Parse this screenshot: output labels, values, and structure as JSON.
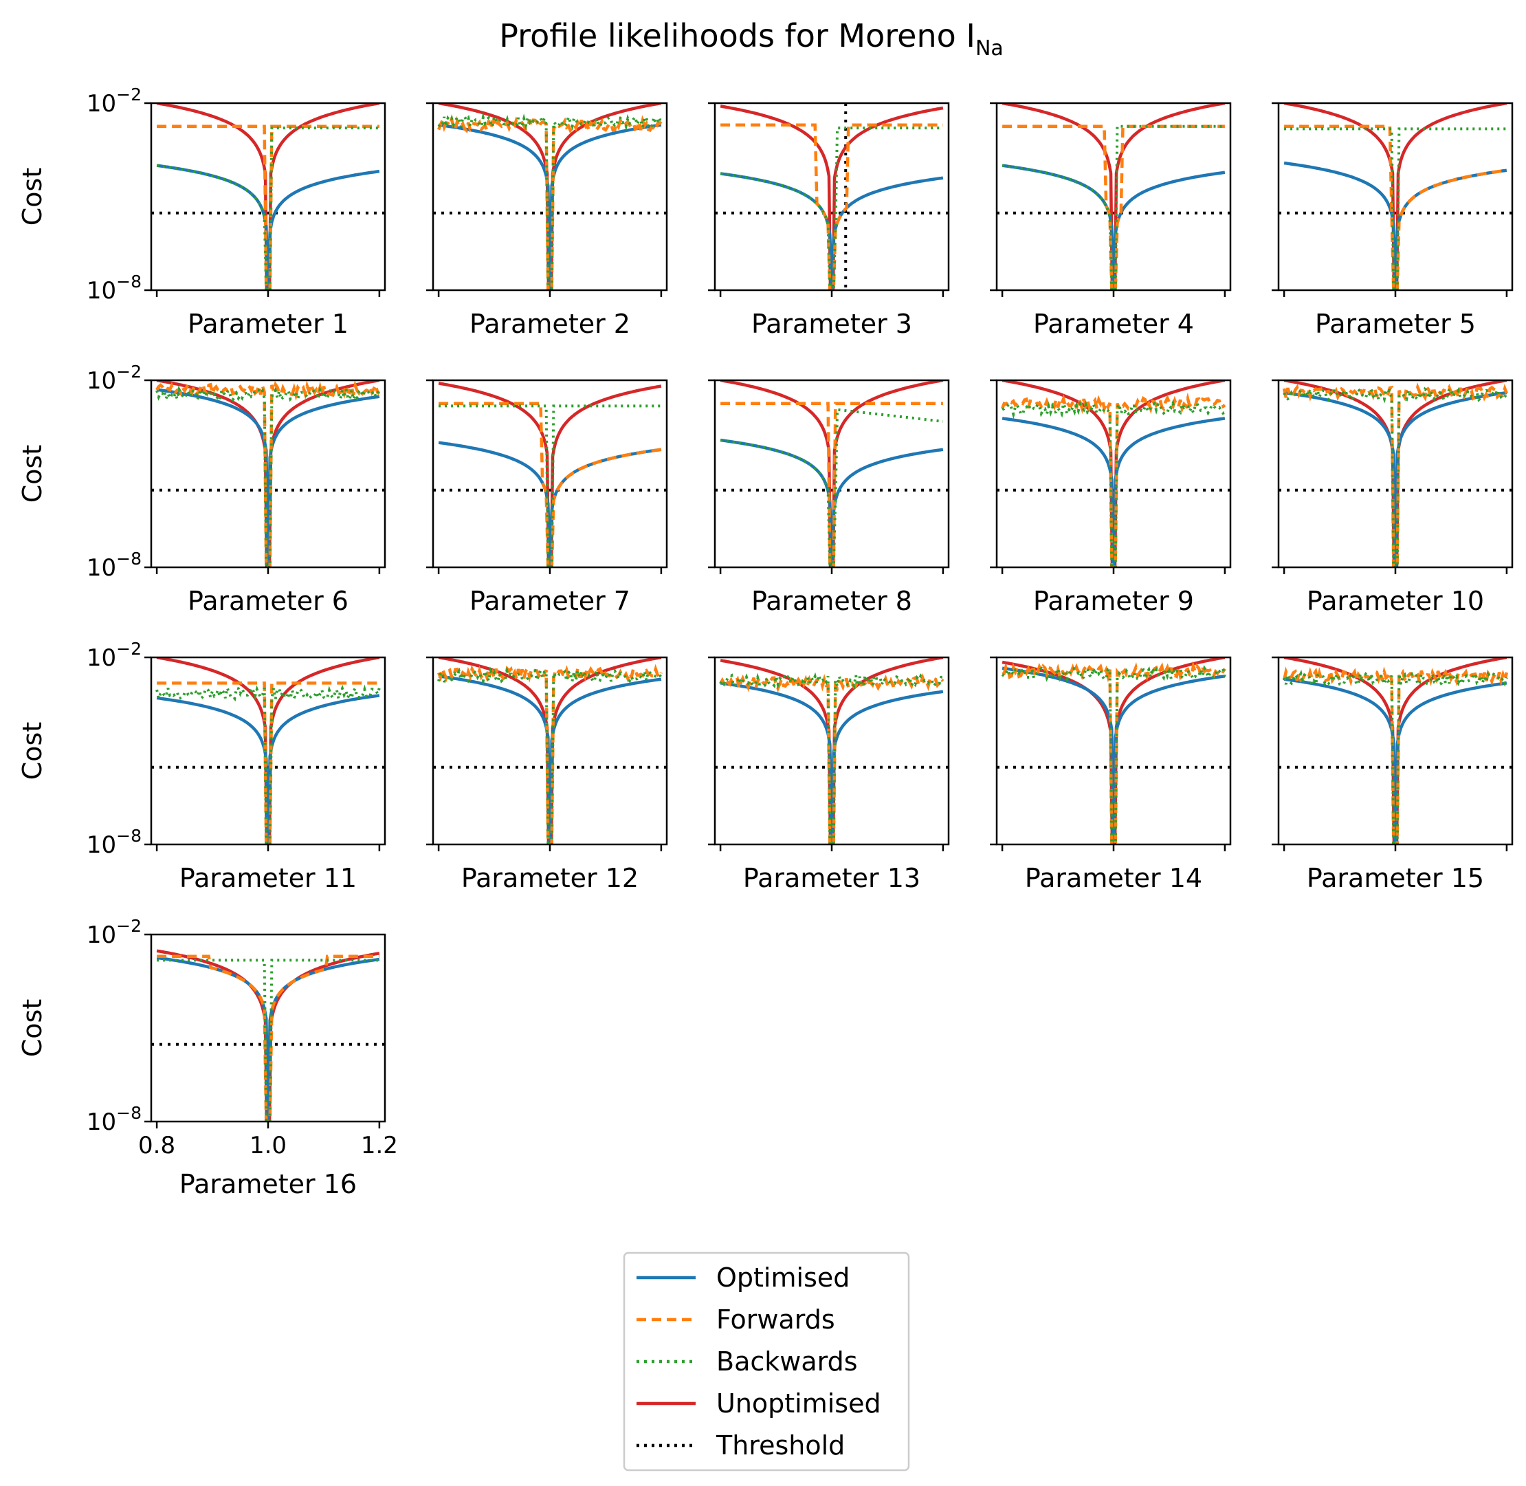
{
  "figure": {
    "title": "Profile likelihoods for Moreno I",
    "title_subscript": "Na"
  },
  "colors": {
    "optimised": "#1f77b4",
    "forwards": "#ff7f0e",
    "backwards": "#2ca02c",
    "unoptimised": "#d62728",
    "threshold": "#000000"
  },
  "legend": {
    "items": [
      {
        "key": "optimised",
        "label": "Optimised",
        "style": "solid"
      },
      {
        "key": "forwards",
        "label": "Forwards",
        "style": "dashed"
      },
      {
        "key": "backwards",
        "label": "Backwards",
        "style": "dotted"
      },
      {
        "key": "unoptimised",
        "label": "Unoptimised",
        "style": "solid"
      },
      {
        "key": "threshold",
        "label": "Threshold",
        "style": "dotted"
      }
    ]
  },
  "chart_data": {
    "type": "line",
    "layout": "4x5 grid of subplots, 16 used",
    "ylabel": "Cost",
    "yscale": "log",
    "ylim": [
      1e-08,
      0.01
    ],
    "ytick_labels": [
      "10",
      "10"
    ],
    "ytick_exponents": [
      "−8",
      "−2"
    ],
    "xlim": [
      0.79,
      1.21
    ],
    "xticks": [
      0.8,
      1.0,
      1.2
    ],
    "xtick_labels": [
      "0.8",
      "1.0",
      "1.2"
    ],
    "threshold": 3e-06,
    "grid": false,
    "legend_position": "bottom-center, below the subplots",
    "panels": [
      {
        "xlabel": "Parameter 1",
        "optimised": {
          "left": 0.0001,
          "right": 6.5e-05,
          "min": 1e-08
        },
        "forwards": {
          "plateau": 0.0018,
          "jump_x": 0.998
        },
        "backwards": {
          "plateau": 0.0016,
          "jump_x": 1.0,
          "side": "right"
        },
        "unoptimised": {
          "left": 0.01,
          "right": 0.01
        }
      },
      {
        "xlabel": "Parameter 2",
        "optimised": {
          "left": 0.002,
          "right": 0.002,
          "min": 1e-08
        },
        "forwards": {
          "plateau": 0.002,
          "noisy": true
        },
        "backwards": {
          "plateau": 0.0025,
          "noisy": true
        },
        "unoptimised": {
          "left": 0.01,
          "right": 0.01
        }
      },
      {
        "xlabel": "Parameter 3",
        "optimised": {
          "left": 5.5e-05,
          "right": 4e-05,
          "min": 1e-08
        },
        "forwards": {
          "plateau": 0.002,
          "jump_x": 0.975
        },
        "backwards": {
          "plateau": 0.0016,
          "jump_x": 1.01
        },
        "unoptimised": {
          "left": 0.008,
          "right": 0.007
        },
        "vertical_marker_x": 1.025
      },
      {
        "xlabel": "Parameter 4",
        "optimised": {
          "left": 0.0001,
          "right": 6e-05,
          "min": 1e-08
        },
        "forwards": {
          "plateau": 0.0018,
          "jump_x": 0.99
        },
        "backwards": {
          "plateau": 0.0018,
          "jump_x": 1.0
        },
        "unoptimised": {
          "left": 0.01,
          "right": 0.01
        }
      },
      {
        "xlabel": "Parameter 5",
        "optimised": {
          "left": 0.00012,
          "right": 7e-05,
          "min": 1e-08
        },
        "forwards": {
          "plateau": 0.0018,
          "jump_x": 0.99,
          "side": "left"
        },
        "backwards": {
          "plateau": 0.0015
        },
        "unoptimised": {
          "left": 0.01,
          "right": 0.01
        }
      },
      {
        "xlabel": "Parameter 6",
        "optimised": {
          "left": 0.005,
          "right": 0.003,
          "min": 1e-08
        },
        "forwards": {
          "plateau": 0.005,
          "noisy": true
        },
        "backwards": {
          "plateau": 0.0035,
          "noisy": true
        },
        "unoptimised": {
          "left": 0.01,
          "right": 0.01
        }
      },
      {
        "xlabel": "Parameter 7",
        "optimised": {
          "left": 0.0001,
          "right": 6e-05,
          "min": 1e-08
        },
        "forwards": {
          "plateau": 0.0018,
          "jump_x": 0.985,
          "side": "left"
        },
        "backwards": {
          "plateau": 0.0015
        },
        "unoptimised": {
          "left": 0.008,
          "right": 0.0065
        }
      },
      {
        "xlabel": "Parameter 8",
        "optimised": {
          "left": 0.00012,
          "right": 6e-05,
          "min": 1e-08
        },
        "forwards": {
          "plateau": 0.0018,
          "jump_x": 0.998
        },
        "backwards": {
          "plateau": 0.0012,
          "jump_x": 1.008,
          "slope": true
        },
        "unoptimised": {
          "left": 0.01,
          "right": 0.01
        }
      },
      {
        "xlabel": "Parameter 9",
        "optimised": {
          "left": 0.0006,
          "right": 0.0006,
          "min": 1e-08
        },
        "forwards": {
          "plateau": 0.0018,
          "noisy": true
        },
        "backwards": {
          "plateau": 0.0012,
          "noisy": true
        },
        "unoptimised": {
          "left": 0.01,
          "right": 0.01
        }
      },
      {
        "xlabel": "Parameter 10",
        "optimised": {
          "left": 0.004,
          "right": 0.004,
          "min": 1e-08
        },
        "forwards": {
          "plateau": 0.004,
          "noisy": true
        },
        "backwards": {
          "plateau": 0.0035,
          "noisy": true
        },
        "unoptimised": {
          "left": 0.01,
          "right": 0.01
        }
      },
      {
        "xlabel": "Parameter 11",
        "optimised": {
          "left": 0.0005,
          "right": 0.0006,
          "min": 1e-08
        },
        "forwards": {
          "plateau": 0.0015,
          "jump_x": 0.998
        },
        "backwards": {
          "plateau": 0.0007,
          "noisy": true
        },
        "unoptimised": {
          "left": 0.01,
          "right": 0.01
        }
      },
      {
        "xlabel": "Parameter 12",
        "optimised": {
          "left": 0.0025,
          "right": 0.002,
          "min": 1e-08
        },
        "forwards": {
          "plateau": 0.003,
          "noisy": true
        },
        "backwards": {
          "plateau": 0.0025,
          "noisy": true
        },
        "unoptimised": {
          "left": 0.01,
          "right": 0.01
        }
      },
      {
        "xlabel": "Parameter 13",
        "optimised": {
          "left": 0.0015,
          "right": 0.0008,
          "min": 1e-08
        },
        "forwards": {
          "plateau": 0.0015,
          "noisy": true
        },
        "backwards": {
          "plateau": 0.0018,
          "noisy": true
        },
        "unoptimised": {
          "left": 0.008,
          "right": 0.01
        }
      },
      {
        "xlabel": "Parameter 14",
        "optimised": {
          "left": 0.0045,
          "right": 0.0025,
          "min": 1e-08
        },
        "forwards": {
          "plateau": 0.0035,
          "noisy": true
        },
        "backwards": {
          "plateau": 0.003,
          "noisy": true
        },
        "unoptimised": {
          "left": 0.007,
          "right": 0.01
        }
      },
      {
        "xlabel": "Parameter 15",
        "optimised": {
          "left": 0.002,
          "right": 0.0015,
          "min": 1e-08
        },
        "forwards": {
          "plateau": 0.0025,
          "noisy": true
        },
        "backwards": {
          "plateau": 0.002,
          "noisy": true
        },
        "unoptimised": {
          "left": 0.01,
          "right": 0.01
        }
      },
      {
        "xlabel": "Parameter 16",
        "optimised": {
          "left": 0.0018,
          "right": 0.0016,
          "min": 1e-08
        },
        "forwards": {
          "plateau": 0.002,
          "jump_x": 0.9
        },
        "backwards": {
          "plateau": 0.0015
        },
        "unoptimised": {
          "left": 0.003,
          "right": 0.0025
        }
      }
    ]
  }
}
